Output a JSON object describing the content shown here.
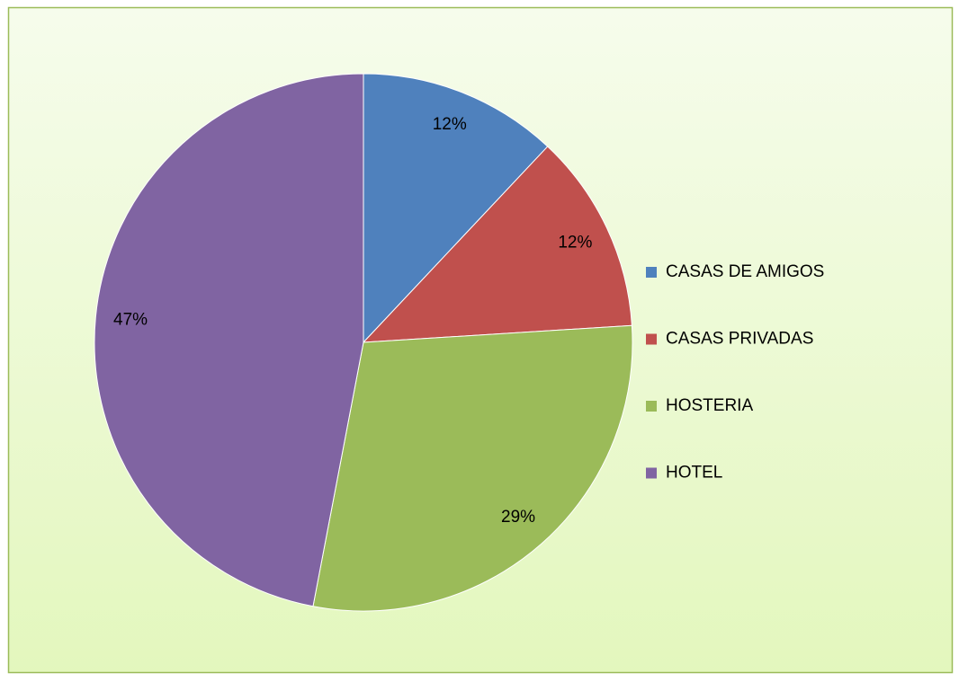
{
  "chart_data": {
    "type": "pie",
    "categories": [
      "CASAS DE AMIGOS",
      "CASAS PRIVADAS",
      "HOSTERIA",
      "HOTEL"
    ],
    "values": [
      12,
      12,
      29,
      47
    ],
    "value_labels": [
      "12%",
      "12%",
      "29%",
      "47%"
    ],
    "colors": [
      "#4f81bd",
      "#c0504d",
      "#9bbb59",
      "#8064a2"
    ],
    "legend": "right"
  }
}
